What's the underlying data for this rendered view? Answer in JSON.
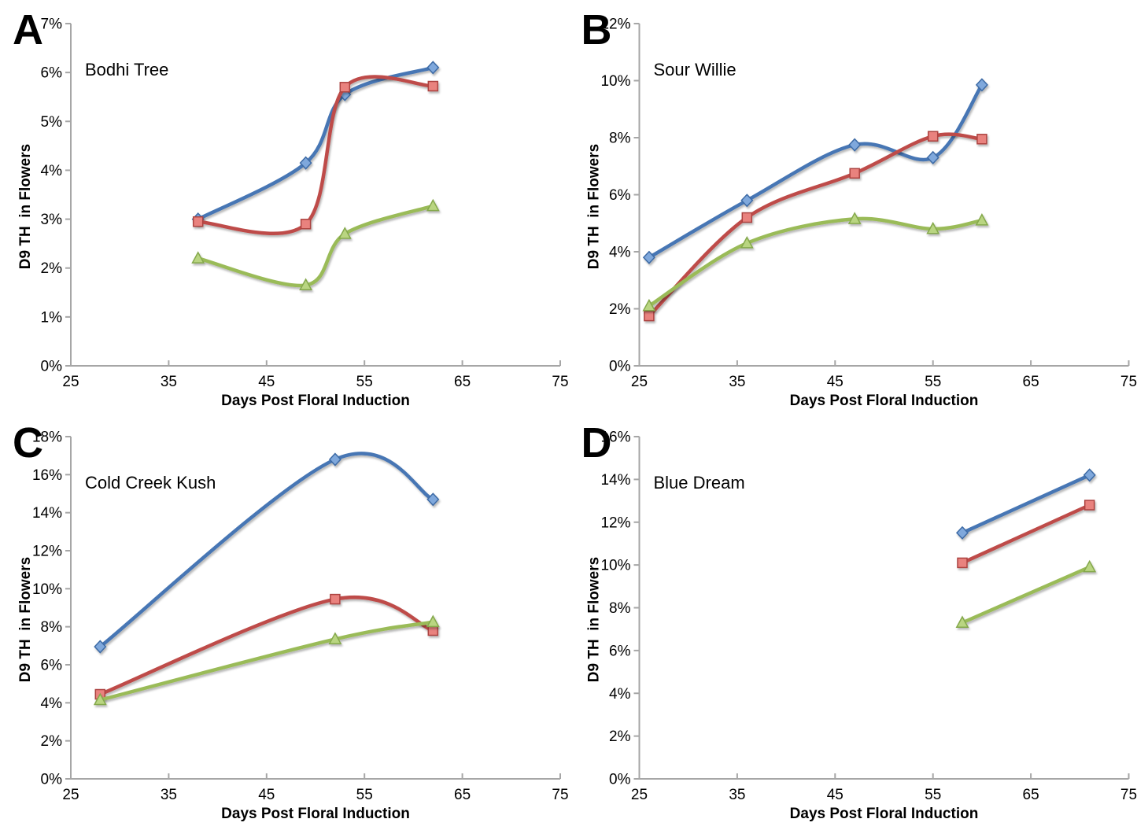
{
  "figure": {
    "background": "#ffffff",
    "axis_color": "#A6A6A6",
    "text_color": "#000000",
    "xlabel": "Days Post Floral Induction",
    "ylabel": "D9 TH  in Flowers",
    "x_ticks": [
      25,
      35,
      45,
      55,
      65,
      75
    ]
  },
  "chart_data": [
    {
      "type": "line",
      "panel_letter": "A",
      "title": "Bodhi Tree",
      "xlabel": "Days Post Floral Induction",
      "ylabel": "D9 TH  in Flowers",
      "xlim": [
        25,
        75
      ],
      "x_ticks": [
        25,
        35,
        45,
        55,
        65,
        75
      ],
      "ylim": [
        0,
        7
      ],
      "ytick_step": 1,
      "grid": false,
      "legend": "none",
      "series": [
        {
          "name": "blue-diamond-series",
          "line_color": "#4676B4",
          "marker": "diamond",
          "marker_fill": "#7FA8DC",
          "marker_edge": "#3D6BA5",
          "x": [
            38,
            49,
            53,
            62
          ],
          "y": [
            3.0,
            4.15,
            5.55,
            6.1
          ]
        },
        {
          "name": "red-square-series",
          "line_color": "#BE4B48",
          "marker": "square",
          "marker_fill": "#E9827E",
          "marker_edge": "#AC4340",
          "x": [
            38,
            49,
            53,
            62
          ],
          "y": [
            2.95,
            2.9,
            5.7,
            5.72
          ]
        },
        {
          "name": "green-triangle-series",
          "line_color": "#9ABB59",
          "marker": "triangle",
          "marker_fill": "#B9D581",
          "marker_edge": "#84A84B",
          "x": [
            38,
            49,
            53,
            62
          ],
          "y": [
            2.2,
            1.65,
            2.7,
            3.27
          ]
        }
      ]
    },
    {
      "type": "line",
      "panel_letter": "B",
      "title": "Sour Willie",
      "xlabel": "Days Post Floral Induction",
      "ylabel": "D9 TH  in Flowers",
      "xlim": [
        25,
        75
      ],
      "x_ticks": [
        25,
        35,
        45,
        55,
        65,
        75
      ],
      "ylim": [
        0,
        12
      ],
      "ytick_step": 2,
      "grid": false,
      "legend": "none",
      "series": [
        {
          "name": "blue-diamond-series",
          "line_color": "#4676B4",
          "marker": "diamond",
          "marker_fill": "#7FA8DC",
          "marker_edge": "#3D6BA5",
          "x": [
            26,
            36,
            47,
            55,
            60
          ],
          "y": [
            3.8,
            5.8,
            7.75,
            7.3,
            9.85
          ]
        },
        {
          "name": "red-square-series",
          "line_color": "#BE4B48",
          "marker": "square",
          "marker_fill": "#E9827E",
          "marker_edge": "#AC4340",
          "x": [
            26,
            36,
            47,
            55,
            60
          ],
          "y": [
            1.75,
            5.2,
            6.75,
            8.05,
            7.95
          ]
        },
        {
          "name": "green-triangle-series",
          "line_color": "#9ABB59",
          "marker": "triangle",
          "marker_fill": "#B9D581",
          "marker_edge": "#84A84B",
          "x": [
            26,
            36,
            47,
            55,
            60
          ],
          "y": [
            2.1,
            4.3,
            5.15,
            4.8,
            5.1
          ]
        }
      ]
    },
    {
      "type": "line",
      "panel_letter": "C",
      "title": "Cold Creek Kush",
      "xlabel": "Days Post Floral Induction",
      "ylabel": "D9 TH  in Flowers",
      "xlim": [
        25,
        75
      ],
      "x_ticks": [
        25,
        35,
        45,
        55,
        65,
        75
      ],
      "ylim": [
        0,
        18
      ],
      "ytick_step": 2,
      "grid": false,
      "legend": "none",
      "series": [
        {
          "name": "blue-diamond-series",
          "line_color": "#4676B4",
          "marker": "diamond",
          "marker_fill": "#7FA8DC",
          "marker_edge": "#3D6BA5",
          "x": [
            28,
            52,
            62
          ],
          "y": [
            6.95,
            16.8,
            14.7
          ]
        },
        {
          "name": "red-square-series",
          "line_color": "#BE4B48",
          "marker": "square",
          "marker_fill": "#E9827E",
          "marker_edge": "#AC4340",
          "x": [
            28,
            52,
            62
          ],
          "y": [
            4.45,
            9.45,
            7.8
          ]
        },
        {
          "name": "green-triangle-series",
          "line_color": "#9ABB59",
          "marker": "triangle",
          "marker_fill": "#B9D581",
          "marker_edge": "#84A84B",
          "x": [
            28,
            52,
            62
          ],
          "y": [
            4.15,
            7.35,
            8.25
          ]
        }
      ]
    },
    {
      "type": "line",
      "panel_letter": "D",
      "title": "Blue Dream",
      "xlabel": "Days Post Floral Induction",
      "ylabel": "D9 TH  in Flowers",
      "xlim": [
        25,
        75
      ],
      "x_ticks": [
        25,
        35,
        45,
        55,
        65,
        75
      ],
      "ylim": [
        0,
        16
      ],
      "ytick_step": 2,
      "grid": false,
      "legend": "none",
      "series": [
        {
          "name": "blue-diamond-series",
          "line_color": "#4676B4",
          "marker": "diamond",
          "marker_fill": "#7FA8DC",
          "marker_edge": "#3D6BA5",
          "x": [
            58,
            71
          ],
          "y": [
            11.5,
            14.2
          ]
        },
        {
          "name": "red-square-series",
          "line_color": "#BE4B48",
          "marker": "square",
          "marker_fill": "#E9827E",
          "marker_edge": "#AC4340",
          "x": [
            58,
            71
          ],
          "y": [
            10.1,
            12.8
          ]
        },
        {
          "name": "green-triangle-series",
          "line_color": "#9ABB59",
          "marker": "triangle",
          "marker_fill": "#B9D581",
          "marker_edge": "#84A84B",
          "x": [
            58,
            71
          ],
          "y": [
            7.3,
            9.9
          ]
        }
      ]
    }
  ]
}
